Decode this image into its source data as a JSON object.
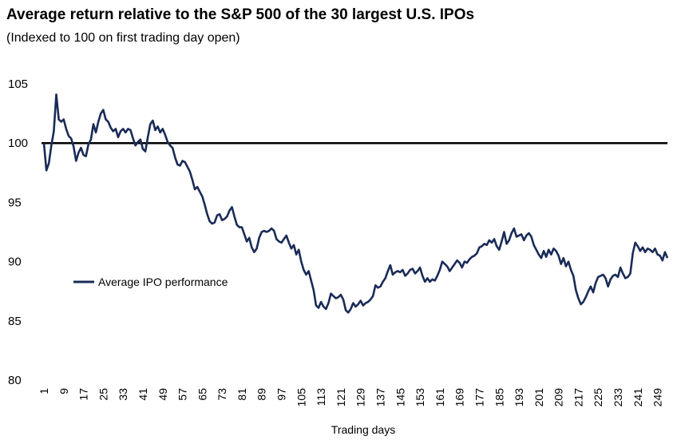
{
  "title": "Average return relative to the S&P 500 of the 30 largest U.S. IPOs",
  "subtitle": "(Indexed  to 100 on first trading day open)",
  "chart_data": {
    "type": "line",
    "title": "Average return relative to the S&P 500 of the 30 largest U.S. IPOs",
    "subtitle": "(Indexed  to 100 on first trading day open)",
    "xlabel": "Trading days",
    "ylabel": "",
    "ylim": [
      80,
      105
    ],
    "yticks": [
      80,
      85,
      90,
      95,
      100,
      105
    ],
    "xlim": [
      1,
      253
    ],
    "xticks": [
      1,
      9,
      17,
      25,
      33,
      41,
      49,
      57,
      65,
      73,
      81,
      89,
      97,
      105,
      113,
      121,
      129,
      137,
      145,
      153,
      161,
      169,
      177,
      185,
      193,
      201,
      209,
      217,
      225,
      233,
      241,
      249
    ],
    "legend_position": "center-left",
    "grid": false,
    "reference_line": {
      "y": 100,
      "color": "#000000"
    },
    "series": [
      {
        "name": "Average IPO performance",
        "color": "#1a2b57",
        "points": [
          [
            1,
            100.0
          ],
          [
            2,
            97.7
          ],
          [
            3,
            98.3
          ],
          [
            4,
            99.8
          ],
          [
            5,
            101.0
          ],
          [
            6,
            104.1
          ],
          [
            7,
            102.0
          ],
          [
            8,
            101.8
          ],
          [
            9,
            102.0
          ],
          [
            10,
            101.2
          ],
          [
            11,
            100.6
          ],
          [
            12,
            100.4
          ],
          [
            13,
            99.7
          ],
          [
            14,
            98.5
          ],
          [
            15,
            99.2
          ],
          [
            16,
            99.6
          ],
          [
            17,
            99.0
          ],
          [
            18,
            98.9
          ],
          [
            19,
            99.9
          ],
          [
            20,
            100.3
          ],
          [
            21,
            101.6
          ],
          [
            22,
            100.9
          ],
          [
            23,
            101.8
          ],
          [
            24,
            102.5
          ],
          [
            25,
            102.8
          ],
          [
            26,
            102.0
          ],
          [
            27,
            101.8
          ],
          [
            28,
            101.3
          ],
          [
            29,
            101.0
          ],
          [
            30,
            101.2
          ],
          [
            31,
            100.5
          ],
          [
            32,
            101.0
          ],
          [
            33,
            101.2
          ],
          [
            34,
            100.9
          ],
          [
            35,
            101.2
          ],
          [
            36,
            101.1
          ],
          [
            37,
            100.4
          ],
          [
            38,
            99.8
          ],
          [
            39,
            100.1
          ],
          [
            40,
            100.3
          ],
          [
            41,
            99.5
          ],
          [
            42,
            99.3
          ],
          [
            43,
            100.5
          ],
          [
            44,
            101.6
          ],
          [
            45,
            101.9
          ],
          [
            46,
            101.1
          ],
          [
            47,
            101.4
          ],
          [
            48,
            100.9
          ],
          [
            49,
            101.2
          ],
          [
            50,
            100.7
          ],
          [
            51,
            100.1
          ],
          [
            52,
            99.8
          ],
          [
            53,
            99.6
          ],
          [
            54,
            98.8
          ],
          [
            55,
            98.2
          ],
          [
            56,
            98.1
          ],
          [
            57,
            98.5
          ],
          [
            58,
            98.4
          ],
          [
            59,
            98.0
          ],
          [
            60,
            97.6
          ],
          [
            61,
            96.9
          ],
          [
            62,
            96.1
          ],
          [
            63,
            96.3
          ],
          [
            64,
            95.9
          ],
          [
            65,
            95.5
          ],
          [
            66,
            94.8
          ],
          [
            67,
            94.0
          ],
          [
            68,
            93.4
          ],
          [
            69,
            93.2
          ],
          [
            70,
            93.3
          ],
          [
            71,
            93.9
          ],
          [
            72,
            94.0
          ],
          [
            73,
            93.5
          ],
          [
            74,
            93.6
          ],
          [
            75,
            93.8
          ],
          [
            76,
            94.3
          ],
          [
            77,
            94.6
          ],
          [
            78,
            93.8
          ],
          [
            79,
            93.1
          ],
          [
            80,
            92.9
          ],
          [
            81,
            92.9
          ],
          [
            82,
            92.3
          ],
          [
            83,
            91.7
          ],
          [
            84,
            92.0
          ],
          [
            85,
            91.2
          ],
          [
            86,
            90.8
          ],
          [
            87,
            91.1
          ],
          [
            88,
            92.0
          ],
          [
            89,
            92.5
          ],
          [
            90,
            92.6
          ],
          [
            91,
            92.5
          ],
          [
            92,
            92.6
          ],
          [
            93,
            92.8
          ],
          [
            94,
            92.6
          ],
          [
            95,
            91.9
          ],
          [
            96,
            91.7
          ],
          [
            97,
            91.6
          ],
          [
            98,
            91.9
          ],
          [
            99,
            92.2
          ],
          [
            100,
            91.6
          ],
          [
            101,
            91.1
          ],
          [
            102,
            91.4
          ],
          [
            103,
            90.6
          ],
          [
            104,
            91.0
          ],
          [
            105,
            90.0
          ],
          [
            106,
            89.3
          ],
          [
            107,
            88.9
          ],
          [
            108,
            89.2
          ],
          [
            109,
            88.4
          ],
          [
            110,
            87.6
          ],
          [
            111,
            86.3
          ],
          [
            112,
            86.1
          ],
          [
            113,
            86.6
          ],
          [
            114,
            86.2
          ],
          [
            115,
            86.0
          ],
          [
            116,
            86.5
          ],
          [
            117,
            87.3
          ],
          [
            118,
            87.1
          ],
          [
            119,
            86.9
          ],
          [
            120,
            87.0
          ],
          [
            121,
            87.2
          ],
          [
            122,
            86.8
          ],
          [
            123,
            85.9
          ],
          [
            124,
            85.7
          ],
          [
            125,
            86.0
          ],
          [
            126,
            86.5
          ],
          [
            127,
            86.2
          ],
          [
            128,
            86.4
          ],
          [
            129,
            86.7
          ],
          [
            130,
            86.3
          ],
          [
            131,
            86.5
          ],
          [
            132,
            86.6
          ],
          [
            133,
            86.8
          ],
          [
            134,
            87.1
          ],
          [
            135,
            88.0
          ],
          [
            136,
            87.8
          ],
          [
            137,
            87.9
          ],
          [
            138,
            88.3
          ],
          [
            139,
            88.6
          ],
          [
            140,
            89.2
          ],
          [
            141,
            89.7
          ],
          [
            142,
            88.9
          ],
          [
            143,
            89.1
          ],
          [
            144,
            89.2
          ],
          [
            145,
            89.1
          ],
          [
            146,
            89.3
          ],
          [
            147,
            88.8
          ],
          [
            148,
            89.0
          ],
          [
            149,
            89.3
          ],
          [
            150,
            89.4
          ],
          [
            151,
            89.0
          ],
          [
            152,
            89.2
          ],
          [
            153,
            89.5
          ],
          [
            154,
            88.8
          ],
          [
            155,
            88.3
          ],
          [
            156,
            88.6
          ],
          [
            157,
            88.3
          ],
          [
            158,
            88.5
          ],
          [
            159,
            88.4
          ],
          [
            160,
            88.8
          ],
          [
            161,
            89.3
          ],
          [
            162,
            90.0
          ],
          [
            163,
            89.8
          ],
          [
            164,
            89.6
          ],
          [
            165,
            89.2
          ],
          [
            166,
            89.5
          ],
          [
            167,
            89.8
          ],
          [
            168,
            90.1
          ],
          [
            169,
            89.9
          ],
          [
            170,
            89.5
          ],
          [
            171,
            90.0
          ],
          [
            172,
            89.9
          ],
          [
            173,
            90.2
          ],
          [
            174,
            90.4
          ],
          [
            175,
            90.5
          ],
          [
            176,
            90.7
          ],
          [
            177,
            91.2
          ],
          [
            178,
            91.3
          ],
          [
            179,
            91.5
          ],
          [
            180,
            91.4
          ],
          [
            181,
            91.8
          ],
          [
            182,
            91.6
          ],
          [
            183,
            91.9
          ],
          [
            184,
            91.3
          ],
          [
            185,
            91.0
          ],
          [
            186,
            91.7
          ],
          [
            187,
            92.5
          ],
          [
            188,
            91.5
          ],
          [
            189,
            91.8
          ],
          [
            190,
            92.4
          ],
          [
            191,
            92.8
          ],
          [
            192,
            92.1
          ],
          [
            193,
            92.2
          ],
          [
            194,
            92.3
          ],
          [
            195,
            91.8
          ],
          [
            196,
            92.2
          ],
          [
            197,
            92.4
          ],
          [
            198,
            92.1
          ],
          [
            199,
            91.4
          ],
          [
            200,
            91.0
          ],
          [
            201,
            90.6
          ],
          [
            202,
            90.3
          ],
          [
            203,
            90.9
          ],
          [
            204,
            90.4
          ],
          [
            205,
            91.0
          ],
          [
            206,
            90.6
          ],
          [
            207,
            91.1
          ],
          [
            208,
            90.9
          ],
          [
            209,
            90.5
          ],
          [
            210,
            89.8
          ],
          [
            211,
            90.3
          ],
          [
            212,
            89.6
          ],
          [
            213,
            90.0
          ],
          [
            214,
            89.3
          ],
          [
            215,
            88.8
          ],
          [
            216,
            87.6
          ],
          [
            217,
            86.9
          ],
          [
            218,
            86.4
          ],
          [
            219,
            86.6
          ],
          [
            220,
            87.0
          ],
          [
            221,
            87.5
          ],
          [
            222,
            87.9
          ],
          [
            223,
            87.4
          ],
          [
            224,
            88.2
          ],
          [
            225,
            88.7
          ],
          [
            226,
            88.8
          ],
          [
            227,
            88.9
          ],
          [
            228,
            88.6
          ],
          [
            229,
            87.9
          ],
          [
            230,
            88.5
          ],
          [
            231,
            88.8
          ],
          [
            232,
            88.9
          ],
          [
            233,
            88.7
          ],
          [
            234,
            89.5
          ],
          [
            235,
            89.0
          ],
          [
            236,
            88.6
          ],
          [
            237,
            88.7
          ],
          [
            238,
            89.0
          ],
          [
            239,
            90.7
          ],
          [
            240,
            91.6
          ],
          [
            241,
            91.3
          ],
          [
            242,
            90.9
          ],
          [
            243,
            91.2
          ],
          [
            244,
            90.8
          ],
          [
            245,
            91.1
          ],
          [
            246,
            91.0
          ],
          [
            247,
            90.8
          ],
          [
            248,
            91.1
          ],
          [
            249,
            90.6
          ],
          [
            250,
            90.5
          ],
          [
            251,
            90.1
          ],
          [
            252,
            90.8
          ],
          [
            253,
            90.3
          ]
        ]
      }
    ]
  }
}
